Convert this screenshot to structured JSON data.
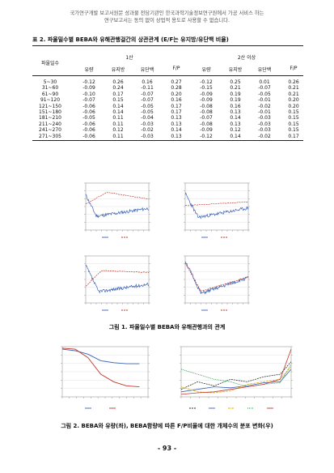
{
  "notice": {
    "line1": "국가연구개발 보고서원문 성과물 전담기관인 한국과학기술정보연구원에서 가공 서비스 하는",
    "line2": "연구보고서는 동의 없이 상업적 용도로 사용할 수 없습니다."
  },
  "table": {
    "caption": "표 2. 파울밀수별 BEBA와 유해관행걸간의 상관관계 (E/F는 유지방/유단백 비율)",
    "row_header": "파울일수",
    "group1": "1산",
    "group2": "2산 이상",
    "col_headers": [
      "유량",
      "유지방",
      "유단백",
      "F/P",
      "유량",
      "유지방",
      "유단백",
      "F/P"
    ],
    "rows": [
      {
        "label": "5~30",
        "g1": [
          "-0.12",
          "0.26",
          "0.16",
          "0.27"
        ],
        "g2": [
          "-0.12",
          "0.25",
          "0.01",
          "0.26"
        ]
      },
      {
        "label": "31~60",
        "g1": [
          "-0.09",
          "0.24",
          "-0.11",
          "0.28"
        ],
        "g2": [
          "-0.15",
          "0.21",
          "-0.07",
          "0.21"
        ]
      },
      {
        "label": "61~90",
        "g1": [
          "-0.10",
          "0.17",
          "-0.07",
          "0.20"
        ],
        "g2": [
          "-0.09",
          "0.19",
          "-0.05",
          "0.21"
        ]
      },
      {
        "label": "91~120",
        "g1": [
          "-0.07",
          "0.15",
          "-0.07",
          "0.16"
        ],
        "g2": [
          "-0.09",
          "0.19",
          "-0.01",
          "0.20"
        ]
      },
      {
        "label": "121~150",
        "g1": [
          "-0.06",
          "0.14",
          "-0.05",
          "0.17"
        ],
        "g2": [
          "-0.08",
          "0.16",
          "-0.02",
          "0.20"
        ]
      },
      {
        "label": "151~180",
        "g1": [
          "-0.06",
          "0.14",
          "-0.05",
          "0.17"
        ],
        "g2": [
          "-0.08",
          "0.13",
          "-0.01",
          "0.15"
        ]
      },
      {
        "label": "181~210",
        "g1": [
          "-0.05",
          "0.11",
          "-0.04",
          "0.13"
        ],
        "g2": [
          "-0.07",
          "0.14",
          "-0.03",
          "0.15"
        ]
      },
      {
        "label": "211~240",
        "g1": [
          "-0.06",
          "0.11",
          "-0.03",
          "0.13"
        ],
        "g2": [
          "-0.08",
          "0.13",
          "-0.03",
          "0.15"
        ]
      },
      {
        "label": "241~270",
        "g1": [
          "-0.06",
          "0.12",
          "-0.02",
          "0.14"
        ],
        "g2": [
          "-0.09",
          "0.12",
          "-0.03",
          "0.15"
        ]
      },
      {
        "label": "271~305",
        "g1": [
          "-0.06",
          "0.11",
          "-0.03",
          "0.13"
        ],
        "g2": [
          "-0.12",
          "0.14",
          "-0.02",
          "0.17"
        ]
      }
    ]
  },
  "figure1": {
    "caption": "그림 1. 파울일수별 BEBA와 유해관행과의 관계",
    "colors": {
      "blue": "#3b63b5",
      "red": "#c0392b"
    }
  },
  "figure2": {
    "caption": "그림 2. BEBA와 유량(좌), BEBA함량에 따른 F/P비율에 대한 개체수의 분포 변화(우)",
    "colors": {
      "blue": "#3b63b5",
      "red": "#c0392b",
      "yellow": "#e0b400",
      "green": "#2e8b57",
      "black": "#333333"
    }
  },
  "page_number": "- 93 -"
}
